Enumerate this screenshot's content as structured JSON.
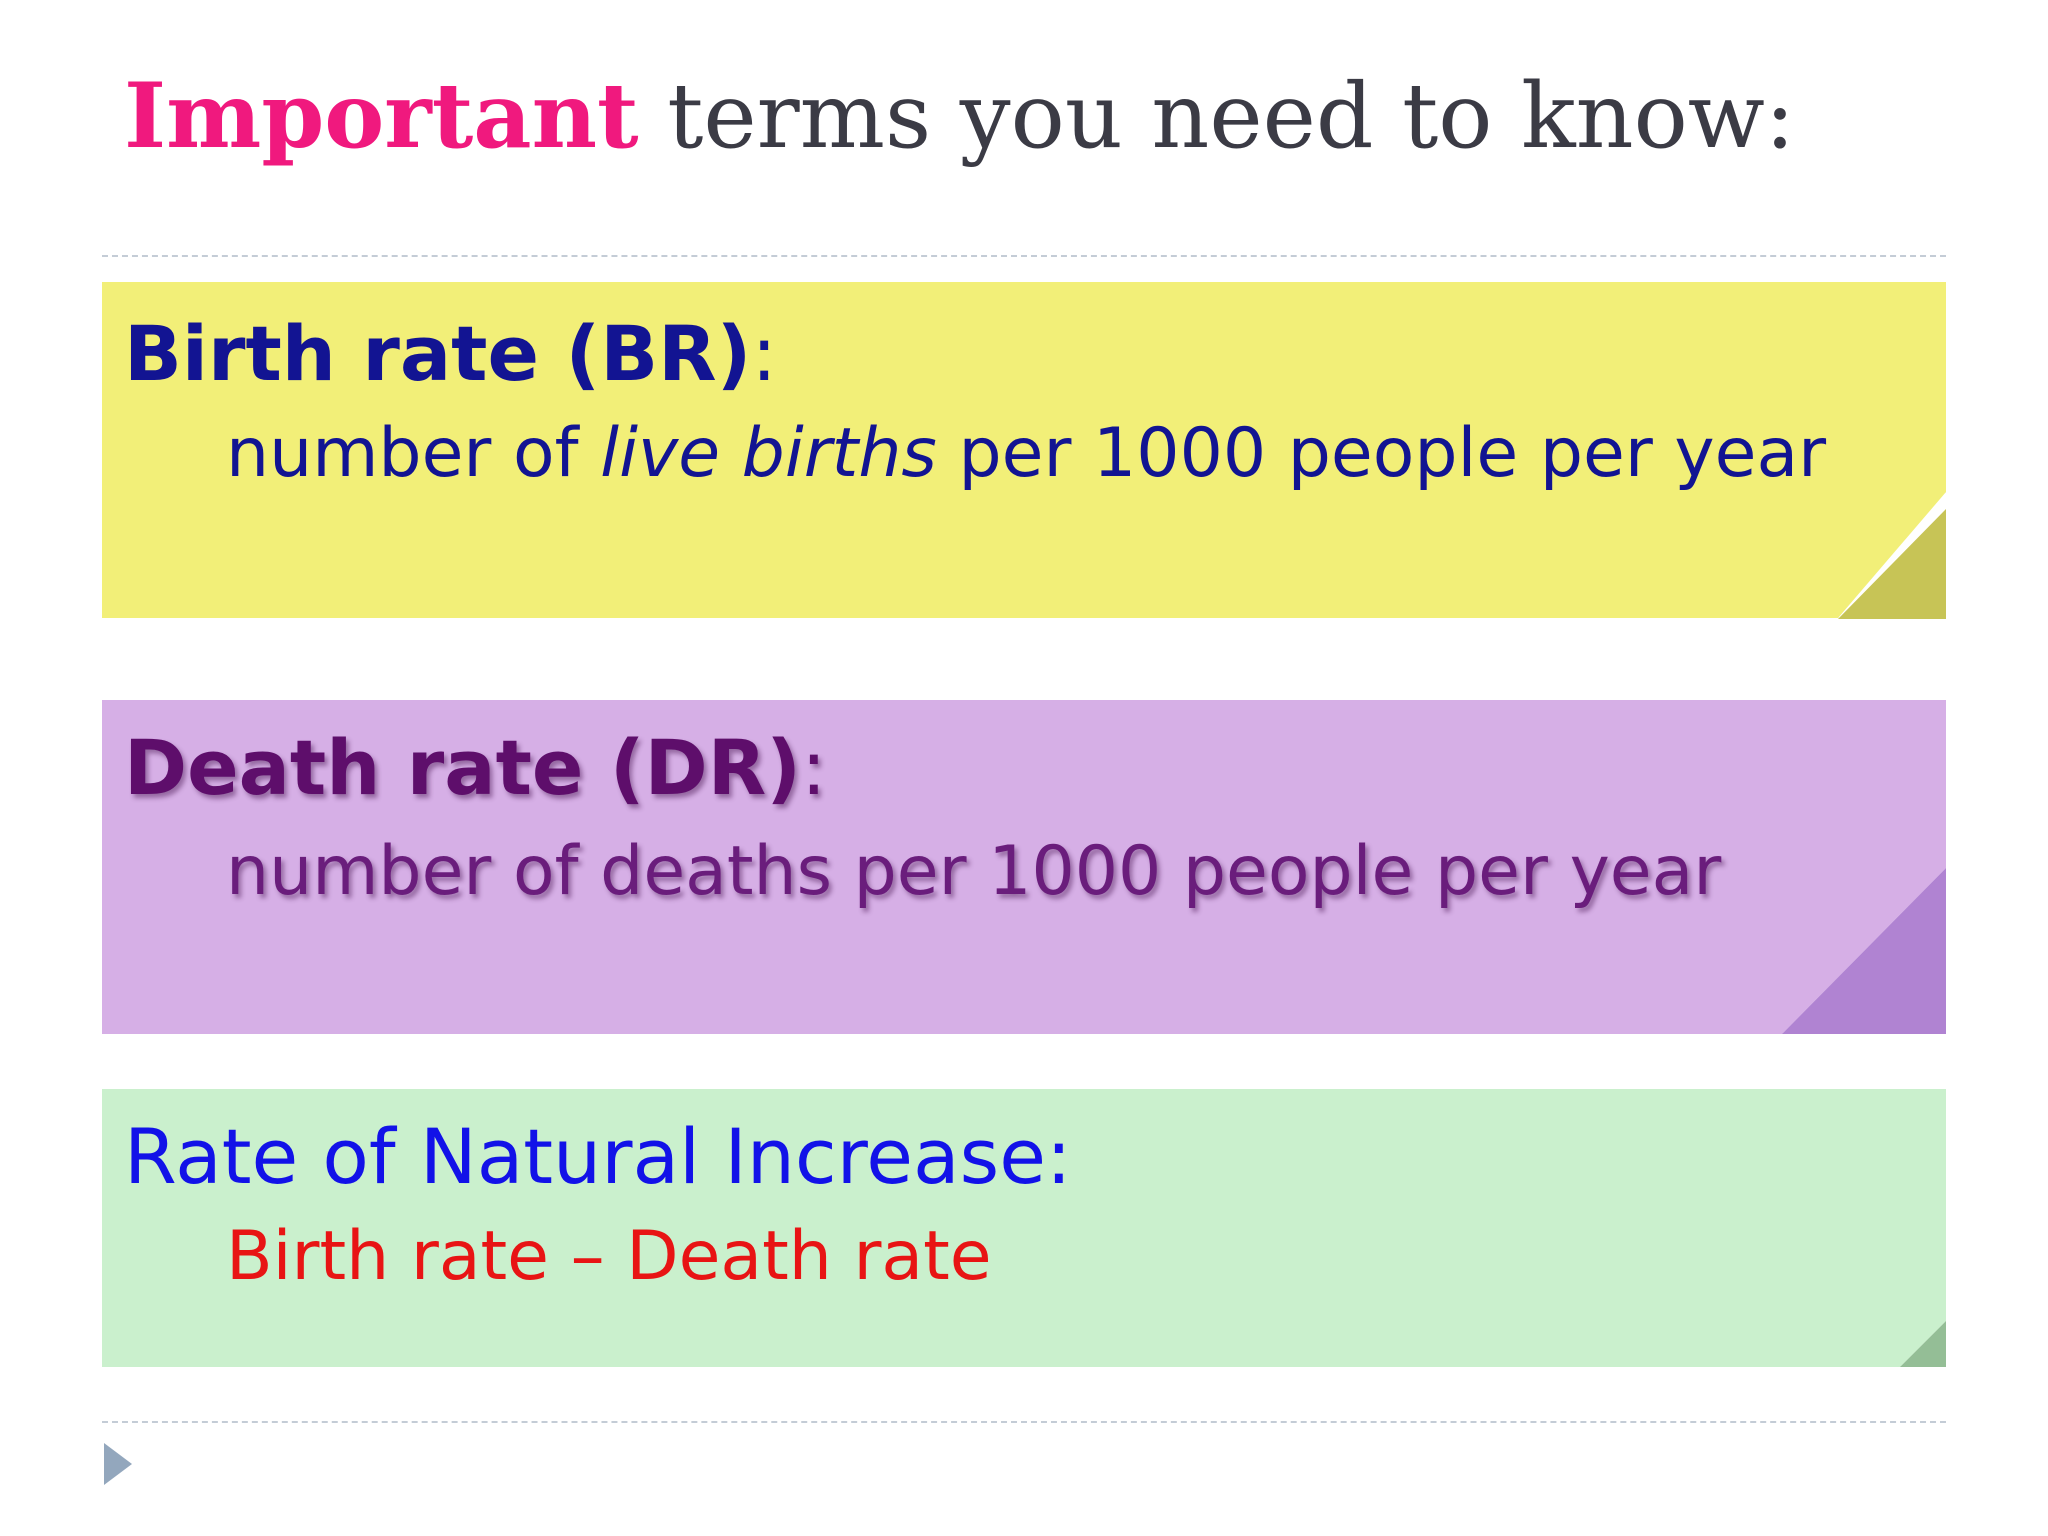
{
  "slide": {
    "title": {
      "emphasis": "Important",
      "rest": "terms you need to know:"
    },
    "terms": [
      {
        "term": "Birth rate (BR)",
        "colon": ":",
        "definition_pre": "number of ",
        "definition_italic": "live births",
        "definition_post": " per 1000 people per year",
        "color": "#f2ef78"
      },
      {
        "term": "Death rate (DR)",
        "colon": ":",
        "definition": "number of deaths per 1000 people per year",
        "color": "#d6afe6"
      },
      {
        "term": "Rate of Natural Increase:",
        "definition": "Birth rate – Death rate",
        "color": "#caf0cd"
      }
    ],
    "colors": {
      "title_emphasis": "#f0197e",
      "title_text": "#3b3b45",
      "br_text": "#121492",
      "dr_text": "#5e0e6b",
      "ni_term": "#1212e8",
      "ni_definition": "#e81414"
    },
    "icons": {
      "nav": "play-triangle-icon"
    }
  }
}
